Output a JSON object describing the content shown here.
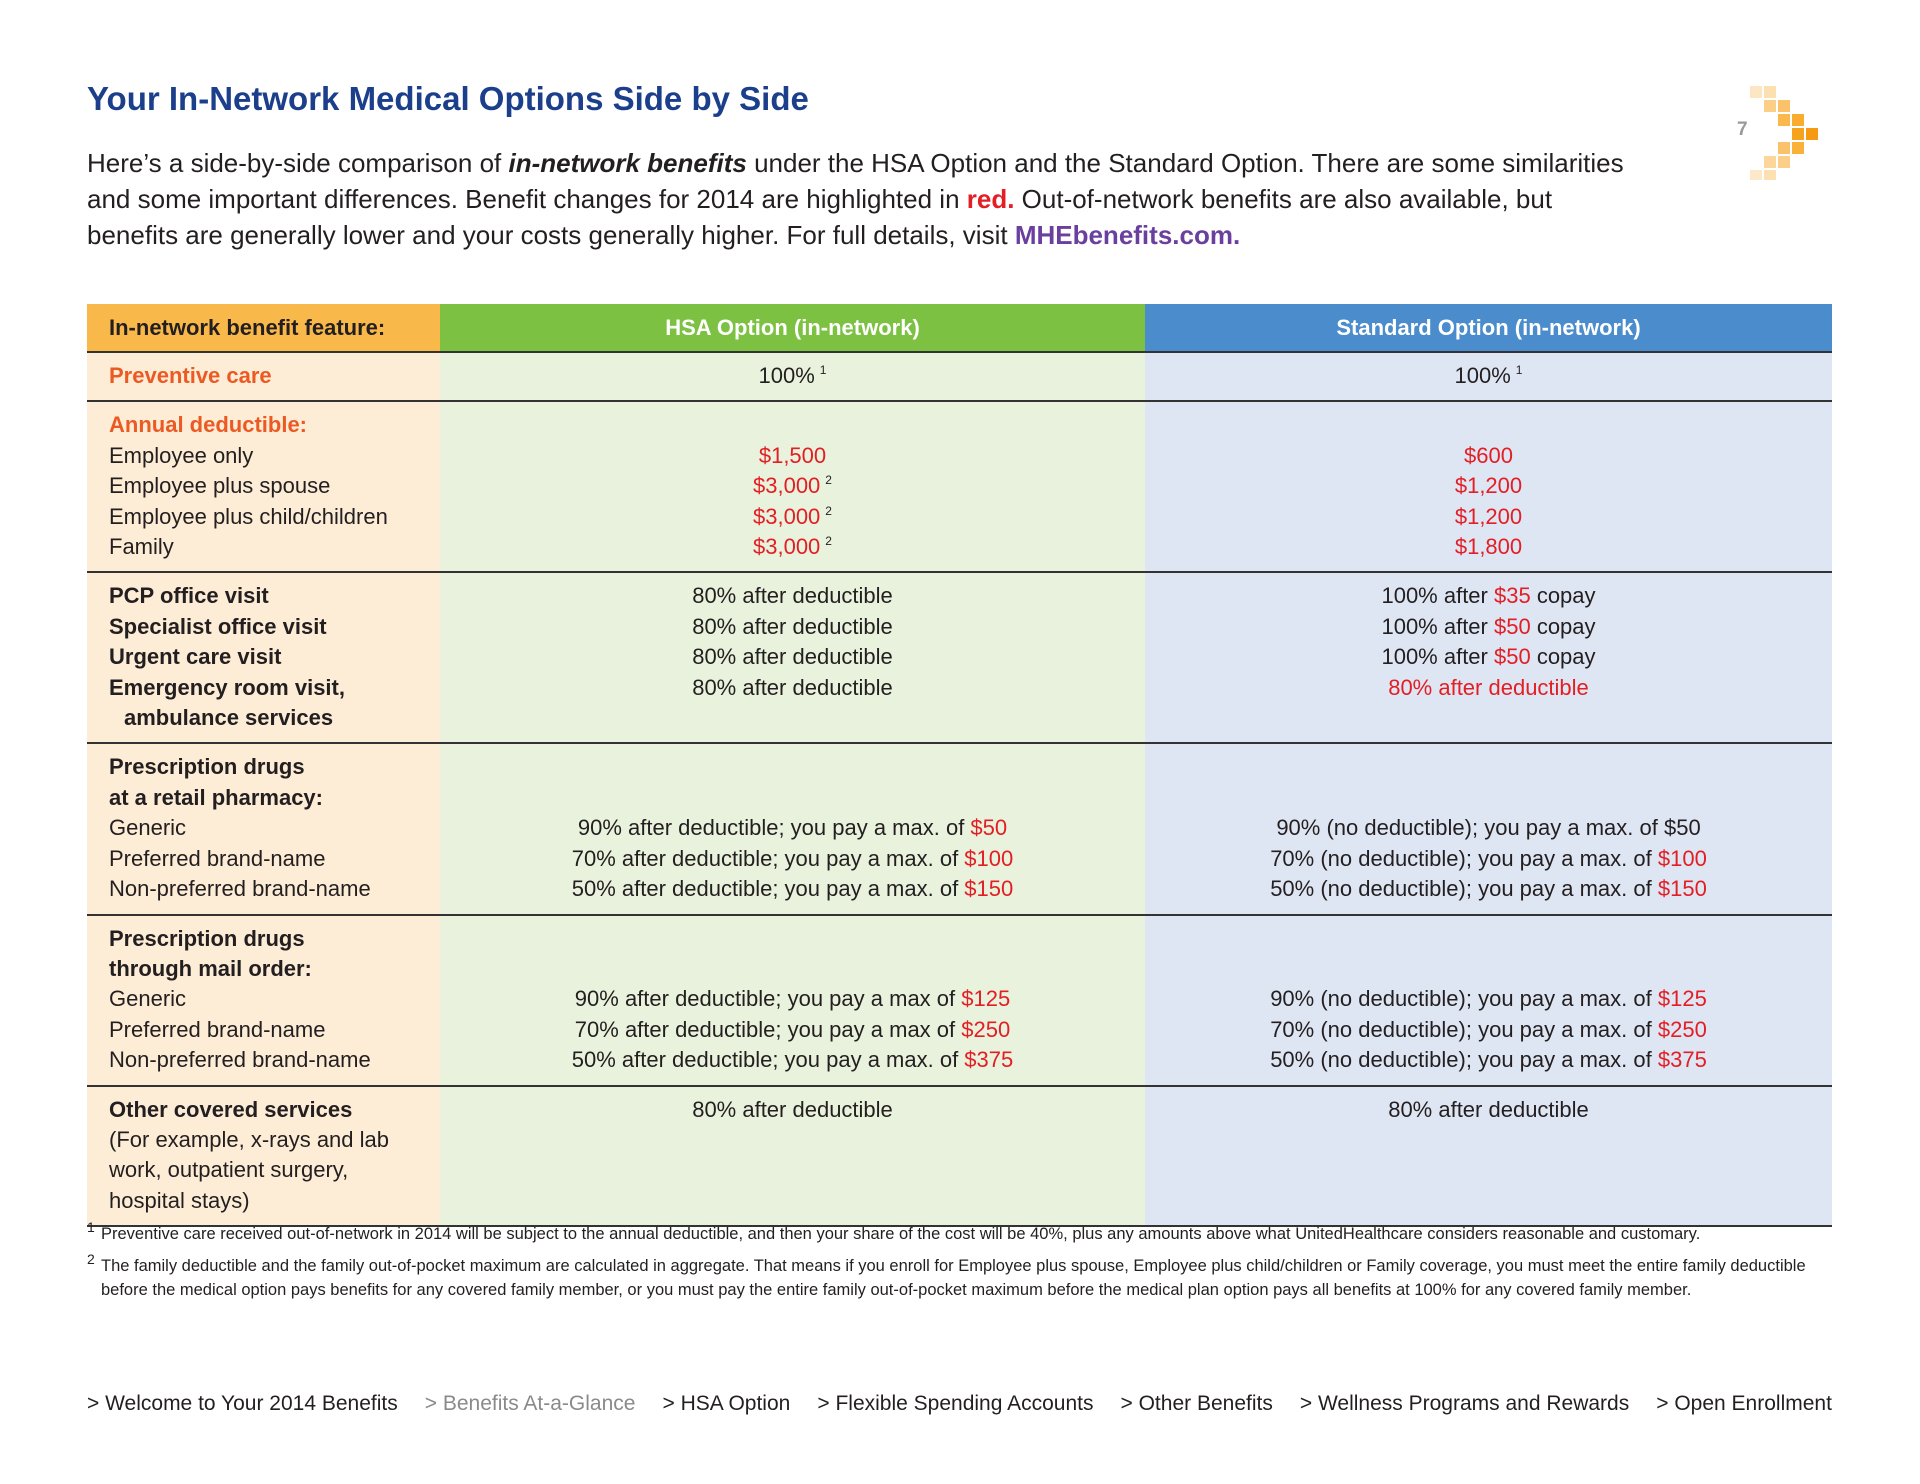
{
  "header": {
    "title": "Your In-Network Medical Options Side by Side",
    "page_number": "7"
  },
  "intro": [
    "Here’s a side-by-side comparison of ",
    {
      "text": "in-network benefits",
      "weight": "bold",
      "style": "italic"
    },
    " under the HSA Option and the Standard Option. There are some similarities and some important differences. Benefit changes for 2014 are highlighted in ",
    {
      "text": "red.",
      "weight": "bold",
      "color": "#e31e24"
    },
    " Out-of-network benefits are also available, but benefits are generally lower and your costs generally higher. For full details, visit ",
    {
      "text": "MHEbenefits.com.",
      "weight": "bold",
      "color": "#6a3f9e"
    }
  ],
  "table": {
    "columns": [
      "In-network benefit feature:",
      "HSA Option (in-network)",
      "Standard Option (in-network)"
    ],
    "sections": [
      {
        "items": [
          {
            "label": [
              [
                {
                  "text": "Preventive care",
                  "weight": "bold",
                  "color": "#ec5a24"
                }
              ]
            ],
            "hsa": [
              "100%",
              {
                "text": "1",
                "sup": true
              }
            ],
            "standard": [
              "100%",
              {
                "text": "1",
                "sup": true
              }
            ]
          }
        ]
      },
      {
        "heading": [
          [
            {
              "text": "Annual deductible:",
              "weight": "bold",
              "color": "#ec5a24"
            }
          ]
        ],
        "items": [
          {
            "label": [
              [
                "Employee only"
              ]
            ],
            "hsa": [
              {
                "text": "$1,500",
                "color": "#e31e24"
              }
            ],
            "standard": [
              {
                "text": "$600",
                "color": "#e31e24"
              }
            ]
          },
          {
            "label": [
              [
                "Employee plus spouse"
              ]
            ],
            "hsa": [
              {
                "text": "$3,000",
                "color": "#e31e24"
              },
              {
                "text": "2",
                "sup": true
              }
            ],
            "standard": [
              {
                "text": "$1,200",
                "color": "#e31e24"
              }
            ]
          },
          {
            "label": [
              [
                "Employee plus child/children"
              ]
            ],
            "hsa": [
              {
                "text": "$3,000",
                "color": "#e31e24"
              },
              {
                "text": "2",
                "sup": true
              }
            ],
            "standard": [
              {
                "text": "$1,200",
                "color": "#e31e24"
              }
            ]
          },
          {
            "label": [
              [
                "Family"
              ]
            ],
            "hsa": [
              {
                "text": "$3,000",
                "color": "#e31e24"
              },
              {
                "text": "2",
                "sup": true
              }
            ],
            "standard": [
              {
                "text": "$1,800",
                "color": "#e31e24"
              }
            ]
          }
        ]
      },
      {
        "items": [
          {
            "label": [
              [
                {
                  "text": "PCP office visit",
                  "weight": "bold"
                }
              ]
            ],
            "hsa": [
              "80% after deductible"
            ],
            "standard": [
              "100% after ",
              {
                "text": "$35",
                "color": "#e31e24"
              },
              " copay"
            ]
          },
          {
            "label": [
              [
                {
                  "text": "Specialist office visit",
                  "weight": "bold"
                }
              ]
            ],
            "hsa": [
              "80% after deductible"
            ],
            "standard": [
              "100% after ",
              {
                "text": "$50",
                "color": "#e31e24"
              },
              " copay"
            ]
          },
          {
            "label": [
              [
                {
                  "text": "Urgent care visit",
                  "weight": "bold"
                }
              ]
            ],
            "hsa": [
              "80% after deductible"
            ],
            "standard": [
              "100% after ",
              {
                "text": "$50",
                "color": "#e31e24"
              },
              " copay"
            ]
          },
          {
            "label": [
              [
                {
                  "text": "Emergency room visit,",
                  "weight": "bold"
                }
              ],
              [
                {
                  "text": "ambulance services",
                  "weight": "bold",
                  "indent": true
                }
              ]
            ],
            "hsa": [
              "80% after deductible"
            ],
            "standard": [
              {
                "text": "80% after deductible",
                "color": "#e31e24"
              }
            ]
          }
        ]
      },
      {
        "heading": [
          [
            {
              "text": "Prescription drugs",
              "weight": "bold"
            }
          ],
          [
            {
              "text": "at a retail pharmacy:",
              "weight": "bold"
            }
          ]
        ],
        "items": [
          {
            "label": [
              [
                "Generic"
              ]
            ],
            "hsa": [
              "90% after deductible; you pay a max. of ",
              {
                "text": "$50",
                "color": "#e31e24"
              }
            ],
            "standard": [
              "90% (no deductible); you pay a max. of $50"
            ]
          },
          {
            "label": [
              [
                "Preferred brand-name"
              ]
            ],
            "hsa": [
              "70% after deductible; you pay a max. of ",
              {
                "text": "$100",
                "color": "#e31e24"
              }
            ],
            "standard": [
              "70% (no deductible); you pay a max. of ",
              {
                "text": "$100",
                "color": "#e31e24"
              }
            ]
          },
          {
            "label": [
              [
                "Non-preferred brand-name"
              ]
            ],
            "hsa": [
              "50% after deductible; you pay a max. of ",
              {
                "text": "$150",
                "color": "#e31e24"
              }
            ],
            "standard": [
              "50% (no deductible); you pay a max. of ",
              {
                "text": "$150",
                "color": "#e31e24"
              }
            ]
          }
        ]
      },
      {
        "heading": [
          [
            {
              "text": "Prescription drugs",
              "weight": "bold"
            }
          ],
          [
            {
              "text": "through mail order:",
              "weight": "bold"
            }
          ]
        ],
        "items": [
          {
            "label": [
              [
                "Generic"
              ]
            ],
            "hsa": [
              "90% after deductible; you pay a max of ",
              {
                "text": "$125",
                "color": "#e31e24"
              }
            ],
            "standard": [
              "90% (no deductible); you pay a max. of ",
              {
                "text": "$125",
                "color": "#e31e24"
              }
            ]
          },
          {
            "label": [
              [
                "Preferred brand-name"
              ]
            ],
            "hsa": [
              "70% after deductible; you pay a max of ",
              {
                "text": "$250",
                "color": "#e31e24"
              }
            ],
            "standard": [
              "70% (no deductible); you pay a max. of ",
              {
                "text": "$250",
                "color": "#e31e24"
              }
            ]
          },
          {
            "label": [
              [
                "Non-preferred brand-name"
              ]
            ],
            "hsa": [
              "50% after deductible; you pay a max. of ",
              {
                "text": "$375",
                "color": "#e31e24"
              }
            ],
            "standard": [
              "50% (no deductible); you pay a max. of ",
              {
                "text": "$375",
                "color": "#e31e24"
              }
            ]
          }
        ]
      },
      {
        "items": [
          {
            "label": [
              [
                {
                  "text": "Other covered services",
                  "weight": "bold"
                }
              ],
              [
                "(For example, x-rays and lab"
              ],
              [
                "work, outpatient surgery,"
              ],
              [
                "hospital stays)"
              ]
            ],
            "hsa": [
              "80% after deductible"
            ],
            "standard": [
              "80% after deductible"
            ]
          }
        ]
      }
    ]
  },
  "footnotes": [
    {
      "marker": "1",
      "text": "Preventive care received out-of-network in 2014 will be subject to the annual deductible, and then your share of the cost will be 40%, plus any amounts above what UnitedHealthcare considers reasonable and customary."
    },
    {
      "marker": "2",
      "text": "The family deductible and the family out-of-pocket maximum are calculated in aggregate. That means if you enroll for Employee plus spouse, Employee plus child/children or Family coverage, you must meet the entire family deductible before the medical option pays benefits for any covered family member, or you must pay the entire family out-of-pocket maximum before the medical plan option pays all benefits at 100% for any covered family member."
    }
  ],
  "nav": [
    {
      "text": "> Welcome to Your 2014 Benefits"
    },
    {
      "text": "> Benefits At-a-Glance",
      "color": "#8a8a8a"
    },
    {
      "text": "> HSA Option"
    },
    {
      "text": "> Flexible Spending Accounts"
    },
    {
      "text": "> Other Benefits"
    },
    {
      "text": "> Wellness Programs and Rewards"
    },
    {
      "text": "> Open Enrollment"
    }
  ]
}
